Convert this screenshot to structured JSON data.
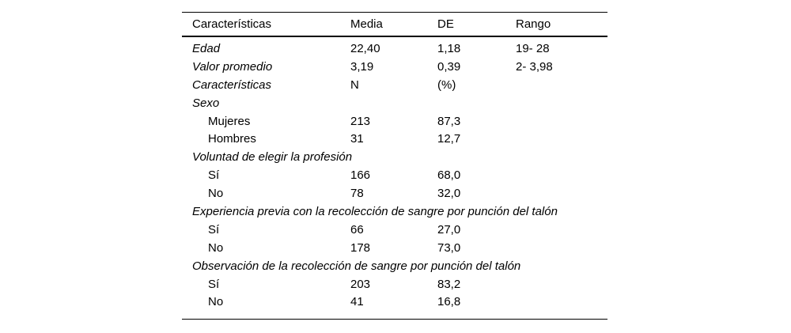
{
  "page": {
    "background": "#ffffff",
    "text_color": "#000000"
  },
  "table": {
    "columns": [
      "Características",
      "Media",
      "DE",
      "Rango"
    ],
    "rows": [
      {
        "label": "Edad",
        "italic": true,
        "indent": false,
        "media": "22,40",
        "de": "1,18",
        "rango": "19- 28"
      },
      {
        "label": "Valor promedio",
        "italic": true,
        "indent": false,
        "media": "3,19",
        "de": "0,39",
        "rango": "2- 3,98"
      },
      {
        "label": "Características",
        "italic": true,
        "indent": false,
        "media": "N",
        "de": "(%)",
        "rango": ""
      },
      {
        "label": "Sexo",
        "italic": true,
        "indent": false,
        "media": "",
        "de": "",
        "rango": ""
      },
      {
        "label": "Mujeres",
        "italic": false,
        "indent": true,
        "media": "213",
        "de": "87,3",
        "rango": ""
      },
      {
        "label": "Hombres",
        "italic": false,
        "indent": true,
        "media": "31",
        "de": "12,7",
        "rango": ""
      },
      {
        "label": "Voluntad de elegir la profesión",
        "italic": true,
        "indent": false,
        "media": "",
        "de": "",
        "rango": ""
      },
      {
        "label": "Sí",
        "italic": false,
        "indent": true,
        "media": "166",
        "de": "68,0",
        "rango": ""
      },
      {
        "label": "No",
        "italic": false,
        "indent": true,
        "media": "78",
        "de": "32,0",
        "rango": ""
      },
      {
        "label": "Experiencia previa con la recolección de sangre por punción del talón",
        "italic": true,
        "indent": false,
        "media": "",
        "de": "",
        "rango": ""
      },
      {
        "label": "Sí",
        "italic": false,
        "indent": true,
        "media": "66",
        "de": "27,0",
        "rango": ""
      },
      {
        "label": "No",
        "italic": false,
        "indent": true,
        "media": "178",
        "de": "73,0",
        "rango": ""
      },
      {
        "label": "Observación de la recolección de sangre por punción del talón",
        "italic": true,
        "indent": false,
        "media": "",
        "de": "",
        "rango": ""
      },
      {
        "label": "Sí",
        "italic": false,
        "indent": true,
        "media": "203",
        "de": "83,2",
        "rango": ""
      },
      {
        "label": "No",
        "italic": false,
        "indent": true,
        "media": "41",
        "de": "16,8",
        "rango": ""
      }
    ]
  }
}
